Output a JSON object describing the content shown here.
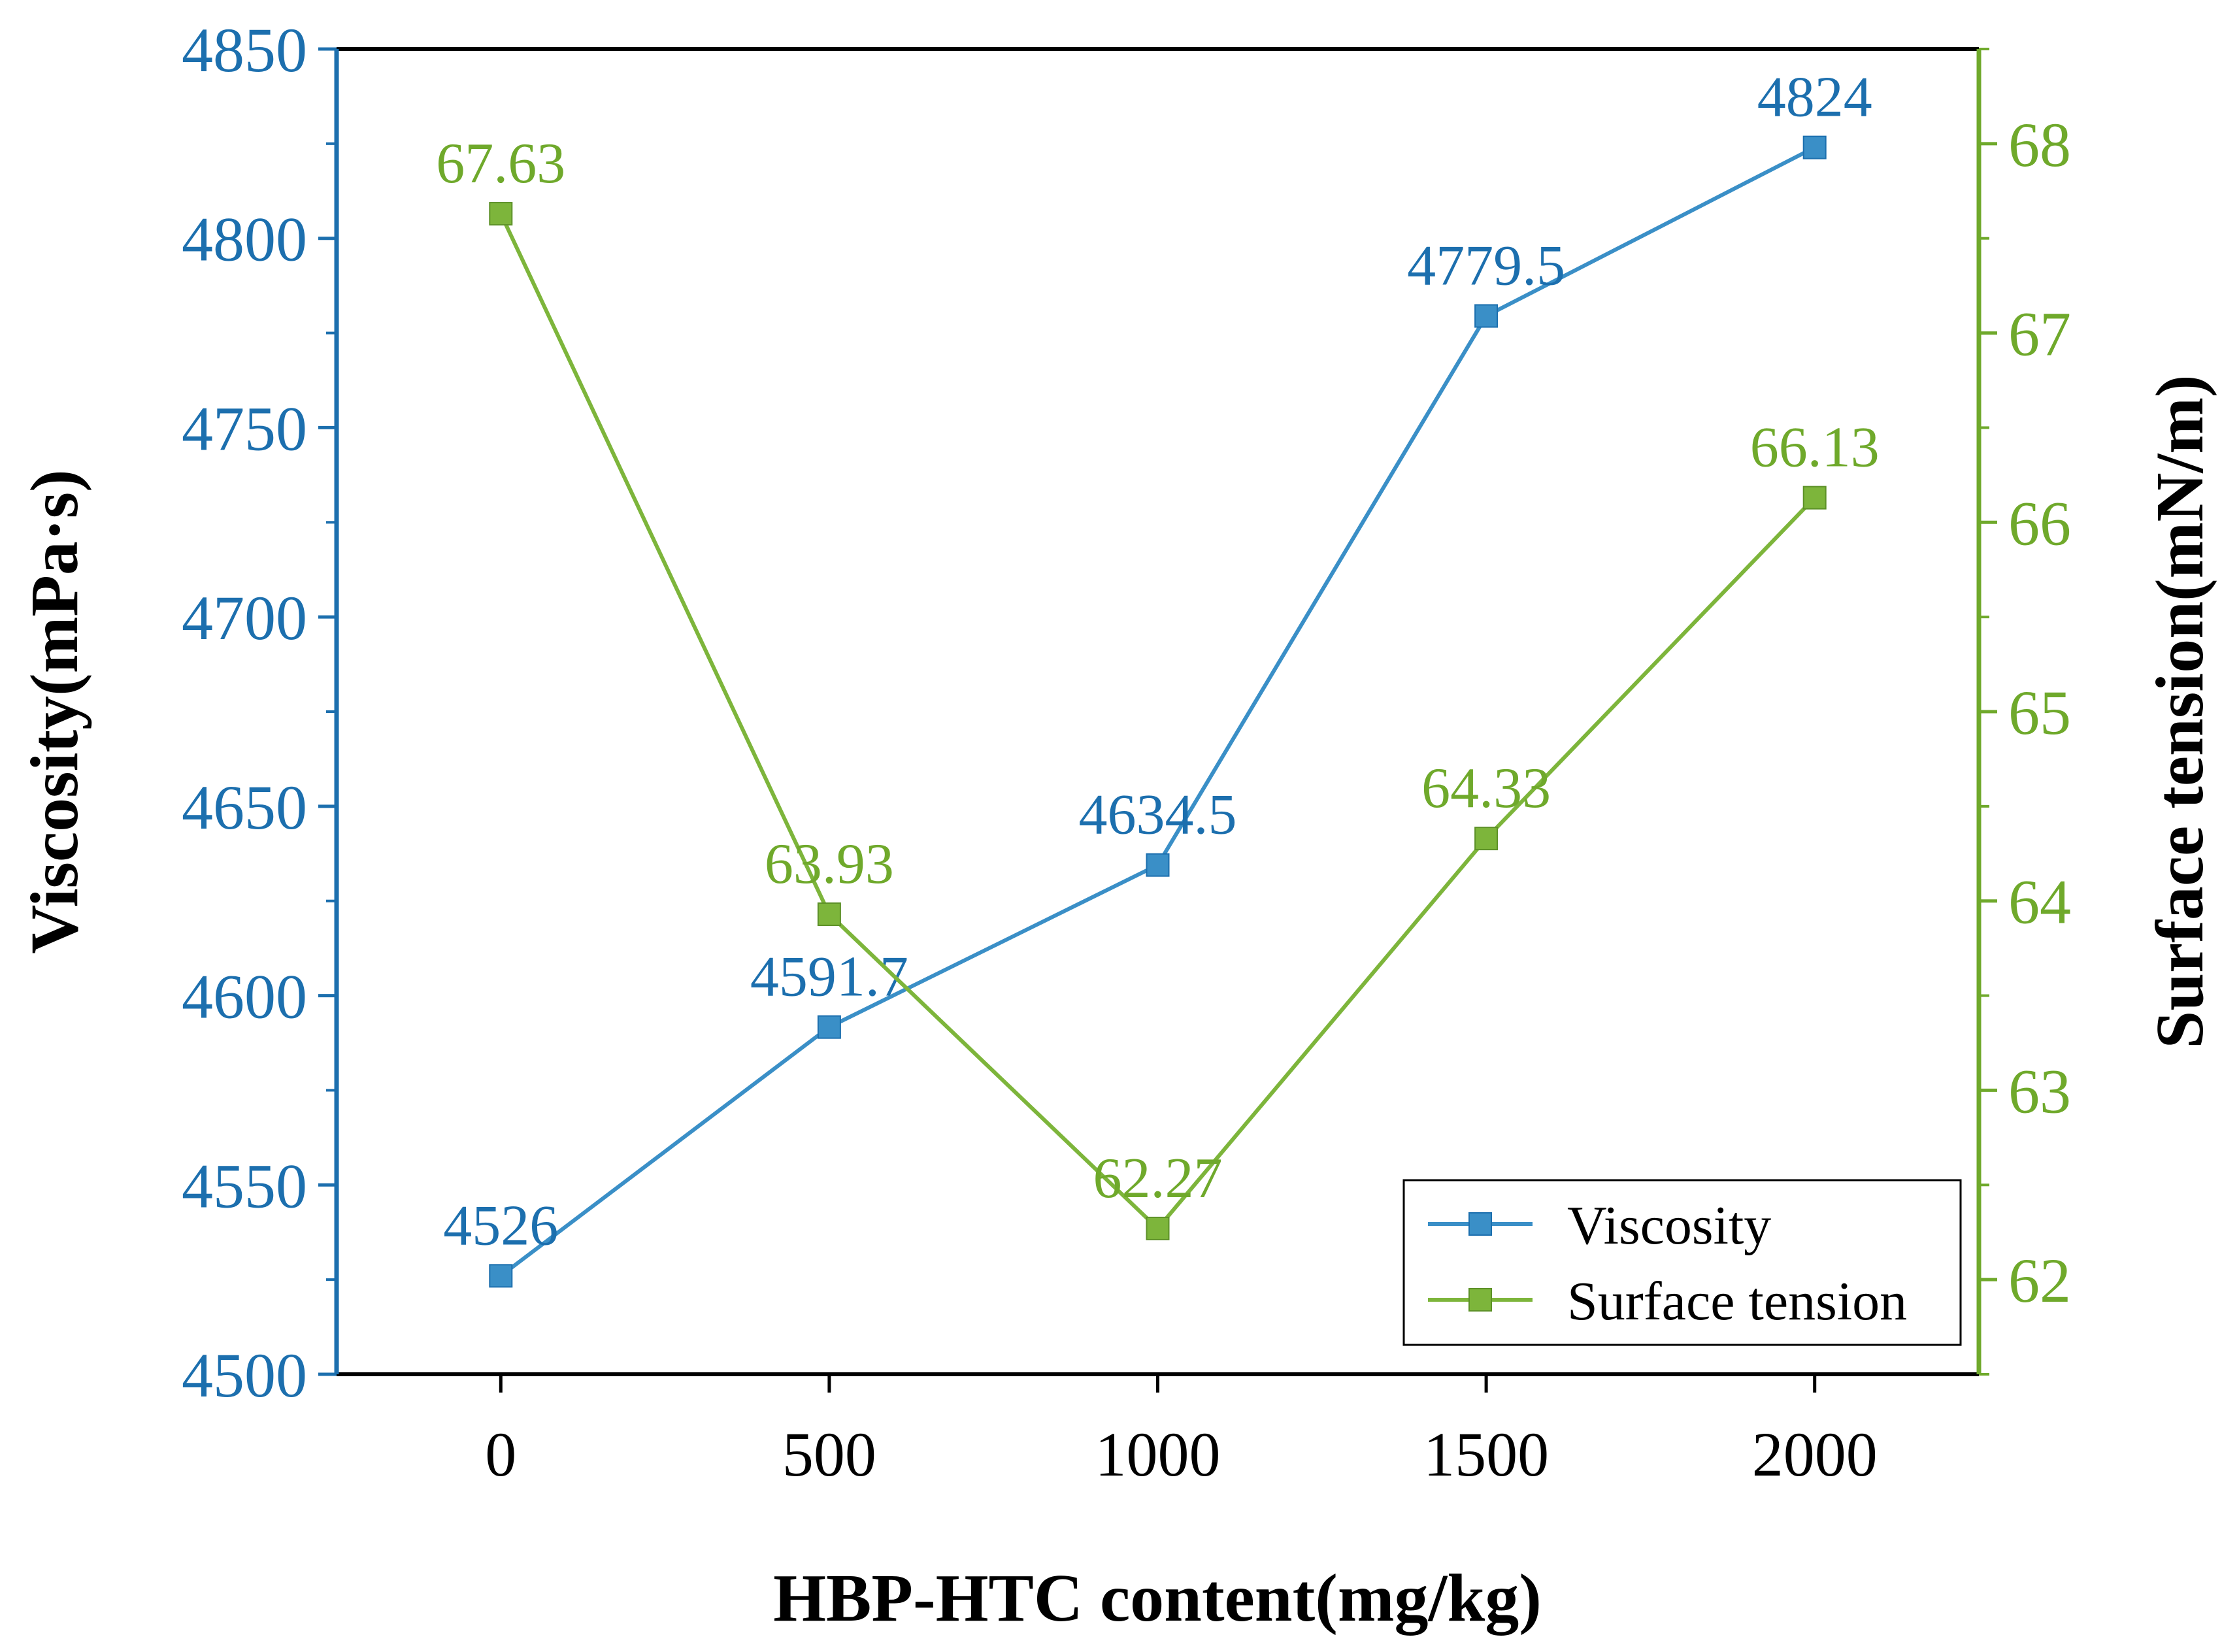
{
  "chart_data": {
    "type": "line",
    "xlabel": "HBP-HTC content(mg/kg)",
    "ylabel_left": "Viscosity(mPa·s)",
    "ylabel_right": "Surface tension(mN/m)",
    "x": [
      0,
      500,
      1000,
      1500,
      2000
    ],
    "xlim": [
      -250,
      2250
    ],
    "x_ticks": [
      "0",
      "500",
      "1000",
      "1500",
      "2000"
    ],
    "ylim_left": [
      4500,
      4850
    ],
    "y_ticks_left": [
      "4500",
      "4550",
      "4600",
      "4650",
      "4700",
      "4750",
      "4800",
      "4850"
    ],
    "ylim_right": [
      61.5,
      68.5
    ],
    "y_ticks_right": [
      "62",
      "63",
      "64",
      "65",
      "66",
      "67",
      "68"
    ],
    "series": [
      {
        "name": "Viscosity",
        "axis": "left",
        "color": "#3a8fc7",
        "values": [
          4526,
          4591.7,
          4634.5,
          4779.5,
          4824
        ],
        "labels": [
          "4526",
          "4591.7",
          "4634.5",
          "4779.5",
          "4824"
        ]
      },
      {
        "name": "Surface tension",
        "axis": "right",
        "color": "#7db53b",
        "values": [
          67.63,
          63.93,
          62.27,
          64.33,
          66.13
        ],
        "labels": [
          "67.63",
          "63.93",
          "62.27",
          "64.33",
          "66.13"
        ]
      }
    ],
    "legend": {
      "position": "bottom-right",
      "entries": [
        "Viscosity",
        "Surface tension"
      ]
    },
    "colors": {
      "left_axis": "#1c6fae",
      "right_axis": "#6fa92b",
      "frame": "#000000"
    }
  }
}
